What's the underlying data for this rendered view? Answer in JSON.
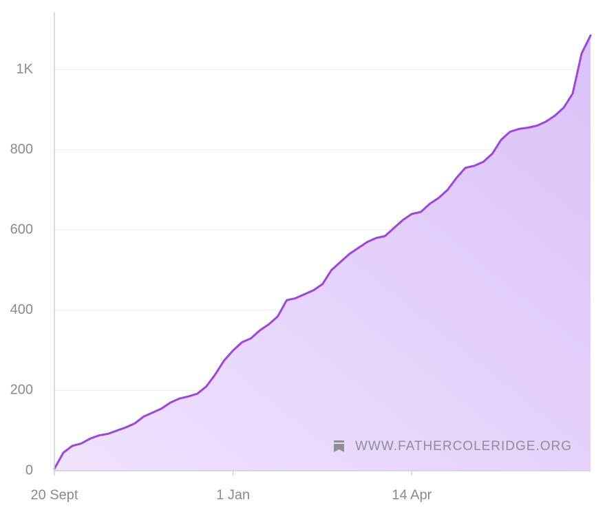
{
  "chart_data": {
    "type": "area",
    "color": "#9a45e6",
    "fill": "#e4d0fb",
    "annotation": "WWW.FATHERCOLERIDGE.ORG",
    "categories": [
      "20 Sept",
      null,
      null,
      null,
      null,
      null,
      null,
      null,
      null,
      null,
      null,
      null,
      null,
      null,
      null,
      null,
      null,
      null,
      null,
      null,
      "1 Jan",
      null,
      null,
      null,
      null,
      null,
      null,
      null,
      null,
      null,
      null,
      null,
      null,
      null,
      null,
      null,
      null,
      null,
      null,
      null,
      "14 Apr",
      null,
      null,
      null,
      null,
      null,
      null,
      null,
      null,
      null,
      null,
      null,
      null,
      null,
      null,
      null,
      null,
      null,
      null,
      null,
      null
    ],
    "values": [
      5,
      45,
      62,
      68,
      80,
      88,
      92,
      100,
      108,
      118,
      135,
      145,
      155,
      170,
      180,
      185,
      192,
      210,
      240,
      275,
      300,
      320,
      330,
      350,
      365,
      385,
      425,
      430,
      440,
      450,
      465,
      500,
      520,
      540,
      555,
      570,
      580,
      585,
      605,
      625,
      640,
      645,
      665,
      680,
      700,
      730,
      755,
      760,
      770,
      790,
      825,
      845,
      852,
      855,
      860,
      870,
      885,
      905,
      940,
      1040,
      1085
    ],
    "ylim": [
      0,
      1140
    ],
    "yticks": [
      0,
      200,
      400,
      600,
      800,
      {
        "value": 1000,
        "label": "1K"
      }
    ],
    "grid": true
  }
}
